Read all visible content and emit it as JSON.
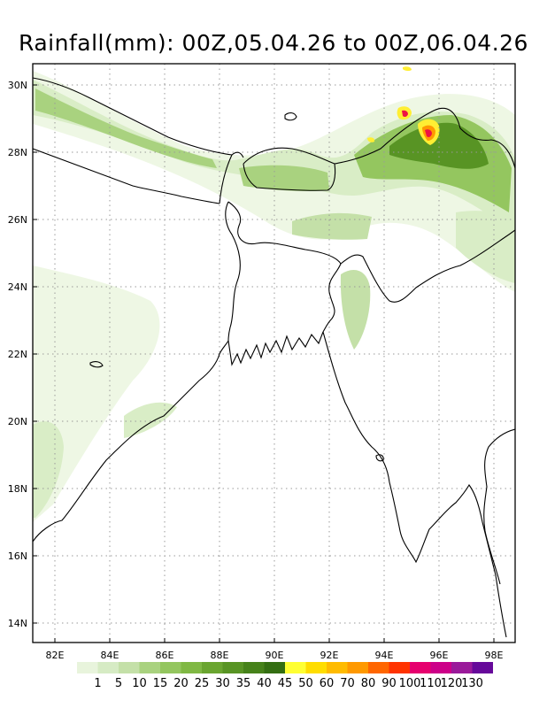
{
  "title": "Rainfall(mm): 00Z,05.04.26 to 00Z,06.04.26",
  "lon_ticks": [
    "82E",
    "84E",
    "86E",
    "88E",
    "90E",
    "92E",
    "94E",
    "96E",
    "98E"
  ],
  "lat_ticks": [
    "30N",
    "28N",
    "26N",
    "24N",
    "22N",
    "20N",
    "18N",
    "16N",
    "14N"
  ],
  "colorbar": {
    "labels": [
      "1",
      "5",
      "10",
      "15",
      "20",
      "25",
      "30",
      "35",
      "40",
      "45",
      "50",
      "60",
      "70",
      "80",
      "90",
      "100",
      "110",
      "120",
      "130"
    ],
    "colors": [
      "#e8f4dc",
      "#d6ebc4",
      "#c4e0a8",
      "#a9d27f",
      "#94c65f",
      "#80b844",
      "#6aa530",
      "#589424",
      "#46821a",
      "#346e12",
      "#ffff33",
      "#ffdd00",
      "#ffbb00",
      "#ff9900",
      "#ff6600",
      "#ff3300",
      "#e6006e",
      "#cc0088",
      "#9a1a9a",
      "#66099a"
    ]
  },
  "rain_colors": {
    "light": "#eef7e4",
    "light2": "#d9edc6",
    "mid": "#a9d27f",
    "mid2": "#80b844",
    "dark": "#589424",
    "heavy_yellow": "#ffee33",
    "heavy_orange": "#ff9900",
    "heavy_red": "#ee1144"
  }
}
